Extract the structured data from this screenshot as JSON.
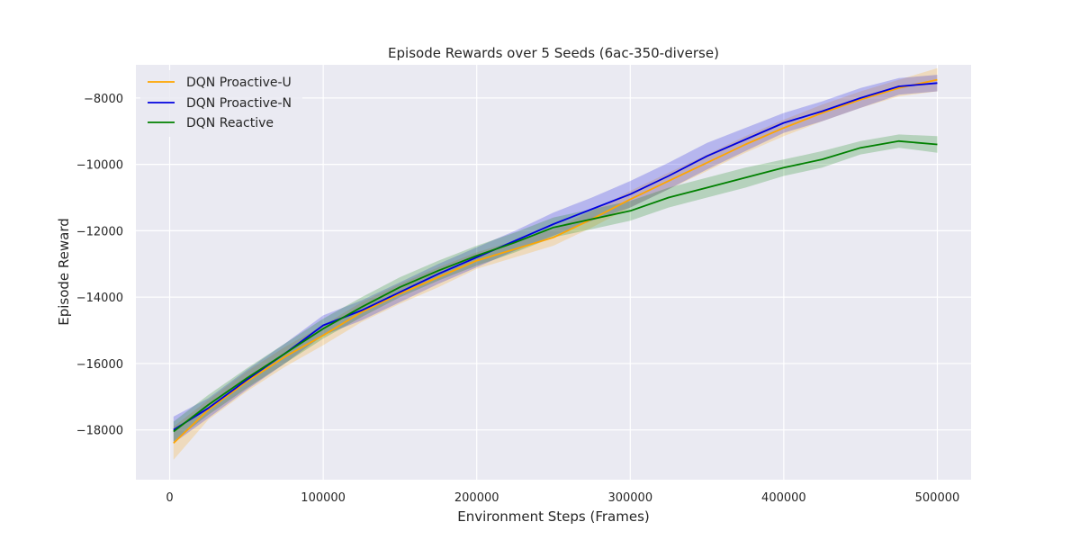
{
  "chart_data": {
    "type": "line",
    "title": "Episode Rewards over 5 Seeds (6ac-350-diverse)",
    "xlabel": "Environment Steps (Frames)",
    "ylabel": "Episode Reward",
    "xlim": [
      -22000,
      522000
    ],
    "ylim": [
      -19500,
      -7000
    ],
    "xticks": [
      0,
      100000,
      200000,
      300000,
      400000,
      500000
    ],
    "yticks": [
      -18000,
      -16000,
      -14000,
      -12000,
      -10000,
      -8000
    ],
    "grid": true,
    "legend_position": "top-left",
    "x": [
      2500,
      25000,
      50000,
      75000,
      100000,
      125000,
      150000,
      175000,
      200000,
      225000,
      250000,
      275000,
      300000,
      325000,
      350000,
      375000,
      400000,
      425000,
      450000,
      475000,
      500000
    ],
    "series": [
      {
        "name": "DQN Proactive-U",
        "color": "#ffa500",
        "values": [
          -18400,
          -17400,
          -16550,
          -15800,
          -15150,
          -14450,
          -13900,
          -13400,
          -12900,
          -12550,
          -12200,
          -11650,
          -11050,
          -10500,
          -9950,
          -9400,
          -8900,
          -8450,
          -8050,
          -7700,
          -7450
        ],
        "band": [
          500,
          300,
          300,
          300,
          300,
          300,
          300,
          300,
          250,
          250,
          250,
          250,
          250,
          250,
          250,
          250,
          250,
          250,
          250,
          250,
          350
        ]
      },
      {
        "name": "DQN Proactive-N",
        "color": "#0000e0",
        "values": [
          -18000,
          -17350,
          -16500,
          -15700,
          -14850,
          -14400,
          -13850,
          -13300,
          -12800,
          -12300,
          -11800,
          -11350,
          -10900,
          -10350,
          -9750,
          -9250,
          -8750,
          -8400,
          -8000,
          -7650,
          -7550
        ],
        "band": [
          400,
          300,
          300,
          300,
          300,
          300,
          300,
          300,
          300,
          300,
          350,
          350,
          400,
          400,
          400,
          350,
          300,
          300,
          300,
          250,
          250
        ]
      },
      {
        "name": "DQN Reactive",
        "color": "#008000",
        "values": [
          -18050,
          -17250,
          -16450,
          -15700,
          -14950,
          -14300,
          -13700,
          -13200,
          -12750,
          -12350,
          -11900,
          -11650,
          -11400,
          -11000,
          -10700,
          -10400,
          -10100,
          -9850,
          -9500,
          -9300,
          -9400
        ],
        "band": [
          300,
          300,
          300,
          300,
          300,
          300,
          300,
          300,
          300,
          300,
          300,
          300,
          300,
          300,
          300,
          300,
          250,
          250,
          200,
          200,
          250
        ]
      }
    ]
  }
}
